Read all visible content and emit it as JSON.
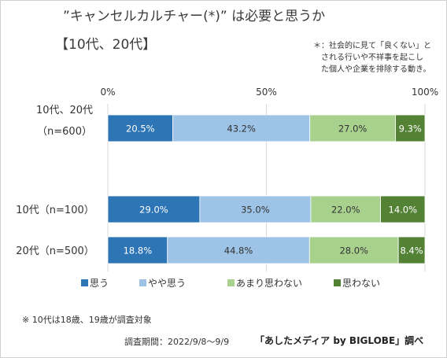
{
  "title": "”キャンセルカルチャー(*)” は必要と思うか",
  "subtitle": "【10代、20代】",
  "note_lines": [
    "＊：社会的に見て「良くない」と",
    "　される行いや不祥事を起こし",
    "　た個人や企業を排除する動き。"
  ],
  "footnote": "※ 10代は18歳、19歳が調査対象",
  "survey_period": "調査期間：2022/9/8～9/9",
  "source": "「あしたメディア by BIGLOBE」調べ",
  "chart_data": {
    "type": "bar",
    "orientation": "horizontal",
    "stacked": true,
    "x_ticks": [
      "0%",
      "50%",
      "100%"
    ],
    "xlim": [
      0,
      100
    ],
    "categories": [
      {
        "lines": [
          "10代、20代",
          "（n=600）"
        ]
      },
      {
        "lines": [
          "10代（n=100）"
        ]
      },
      {
        "lines": [
          "20代（n=500）"
        ]
      }
    ],
    "series": [
      {
        "name": "思う",
        "color": "#2e75b6",
        "text_color": "#ffffff",
        "values": [
          20.5,
          29.0,
          18.8
        ],
        "labels": [
          "20.5%",
          "29.0%",
          "18.8%"
        ]
      },
      {
        "name": "やや思う",
        "color": "#9dc3e6",
        "text_color": "#333333",
        "values": [
          43.2,
          35.0,
          44.8
        ],
        "labels": [
          "43.2%",
          "35.0%",
          "44.8%"
        ]
      },
      {
        "name": "あまり思わない",
        "color": "#a9d18e",
        "text_color": "#333333",
        "values": [
          27.0,
          22.0,
          28.0
        ],
        "labels": [
          "27.0%",
          "22.0%",
          "28.0%"
        ]
      },
      {
        "name": "思わない",
        "color": "#548235",
        "text_color": "#ffffff",
        "values": [
          9.3,
          14.0,
          8.4
        ],
        "labels": [
          "9.3%",
          "14.0%",
          "8.4%"
        ]
      }
    ],
    "legend_position": "bottom"
  }
}
